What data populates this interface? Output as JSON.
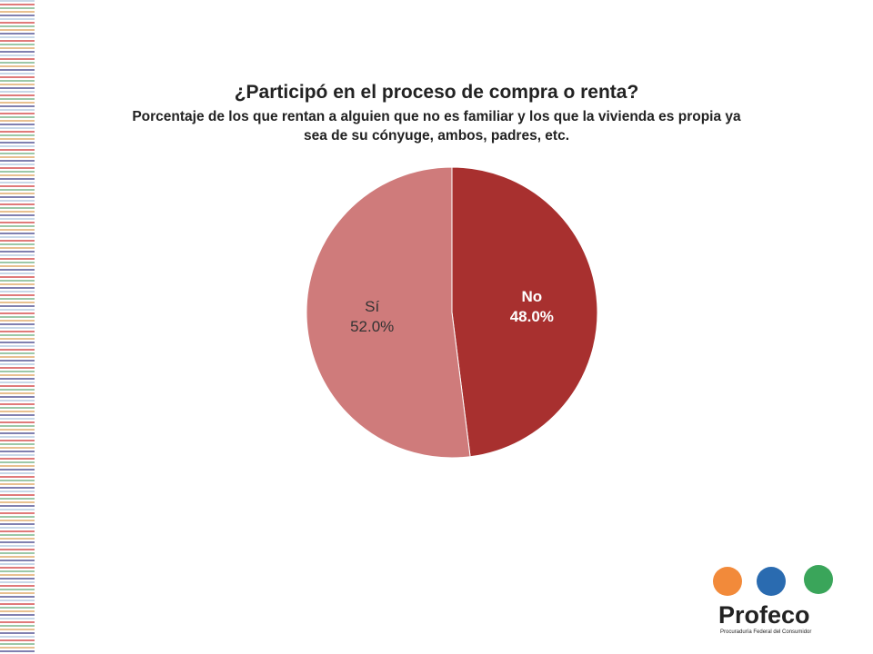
{
  "chart_data": {
    "type": "pie",
    "title": "¿Participó en el proceso de compra o renta?",
    "subtitle": "Porcentaje de los que rentan a alguien que no es familiar y los que la vivienda es propia ya sea de su cónyuge, ambos, padres, etc.",
    "categories": [
      "Sí",
      "No"
    ],
    "values": [
      52.0,
      48.0
    ],
    "value_labels": [
      "52.0%",
      "48.0%"
    ],
    "colors": [
      "#cf7b7b",
      "#a8302f"
    ]
  },
  "logo": {
    "name": "Profeco",
    "tagline": "Procuraduría Federal del Consumidor"
  }
}
